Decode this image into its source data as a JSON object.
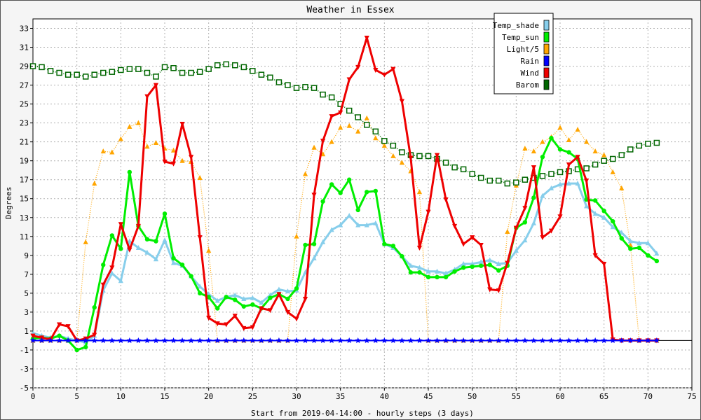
{
  "chart_data": {
    "type": "line",
    "title": "Weather in Essex",
    "xlabel": "Start from 2019-04-14:00 - hourly steps (3 days)",
    "ylabel": "Degrees",
    "xlim": [
      0,
      75
    ],
    "ylim": [
      -5,
      34
    ],
    "xticks": [
      0,
      5,
      10,
      15,
      20,
      25,
      30,
      35,
      40,
      45,
      50,
      55,
      60,
      65,
      70,
      75
    ],
    "yticks": [
      -5,
      -3,
      -1,
      1,
      3,
      5,
      7,
      9,
      11,
      13,
      15,
      17,
      19,
      21,
      23,
      25,
      27,
      29,
      31,
      33
    ],
    "grid": true,
    "legend_position": "top-right",
    "series": [
      {
        "name": "Temp_shade",
        "color": "#87ceeb",
        "marker": "triangle-up",
        "values": [
          0.8,
          0.5,
          0.3,
          0.5,
          0.2,
          0.0,
          -0.2,
          0.5,
          5.3,
          7.1,
          6.3,
          10.5,
          9.8,
          9.3,
          8.6,
          10.6,
          8.2,
          7.9,
          6.8,
          5.7,
          4.9,
          4.2,
          4.6,
          4.8,
          4.4,
          4.5,
          4.0,
          4.8,
          5.4,
          5.2,
          5.3,
          7.2,
          8.7,
          10.4,
          11.7,
          12.2,
          13.2,
          12.2,
          12.2,
          12.4,
          10.2,
          9.8,
          8.9,
          7.9,
          7.7,
          7.3,
          7.3,
          7.1,
          7.5,
          8.1,
          8.1,
          8.3,
          8.5,
          8.1,
          8.2,
          9.5,
          10.6,
          12.4,
          15.3,
          16.1,
          16.5,
          16.6,
          16.6,
          14.2,
          13.4,
          13.0,
          12.0,
          11.4,
          10.5,
          10.3,
          10.3,
          9.2
        ]
      },
      {
        "name": "Temp_sun",
        "color": "#00ee00",
        "marker": "circle",
        "values": [
          0.2,
          0.3,
          0.2,
          0.5,
          0.0,
          -1.0,
          -0.7,
          3.5,
          8.0,
          11.1,
          9.7,
          17.8,
          12.1,
          10.7,
          10.5,
          13.4,
          8.7,
          8.0,
          6.8,
          5.0,
          4.6,
          3.4,
          4.6,
          4.3,
          3.6,
          3.8,
          3.4,
          4.5,
          4.9,
          4.4,
          5.5,
          10.1,
          10.2,
          14.7,
          16.5,
          15.6,
          17.0,
          13.8,
          15.7,
          15.8,
          10.2,
          10.0,
          8.9,
          7.2,
          7.2,
          6.7,
          6.7,
          6.7,
          7.3,
          7.7,
          7.8,
          7.9,
          8.0,
          7.4,
          7.9,
          11.9,
          12.5,
          15.1,
          19.4,
          21.4,
          20.2,
          19.9,
          19.2,
          14.9,
          14.8,
          13.7,
          12.6,
          10.8,
          9.7,
          9.8,
          9.0,
          8.4
        ]
      },
      {
        "name": "Light/5",
        "color": "#ffa500",
        "marker": "triangle-up",
        "values": [
          0,
          0,
          0,
          0,
          0,
          0,
          10.4,
          16.6,
          20.0,
          19.9,
          21.3,
          22.6,
          23.0,
          20.5,
          20.9,
          20.3,
          20.1,
          19.0,
          18.9,
          17.2,
          9.5,
          0,
          0,
          0,
          0,
          0,
          0,
          0,
          0,
          0,
          11.0,
          17.6,
          20.4,
          19.7,
          21.0,
          22.5,
          22.7,
          22.1,
          23.5,
          21.4,
          20.6,
          19.5,
          18.8,
          17.9,
          15.7,
          0,
          0,
          0,
          0,
          0,
          0,
          0,
          0,
          0,
          11.5,
          16.4,
          20.3,
          20.0,
          21.0,
          21.5,
          22.5,
          21.2,
          22.3,
          21.0,
          20.0,
          19.6,
          17.8,
          16.1,
          10.1,
          0,
          0,
          0
        ]
      },
      {
        "name": "Rain",
        "color": "#0000ff",
        "marker": "star",
        "values": [
          0,
          0,
          0,
          0,
          0,
          0,
          0,
          0,
          0,
          0,
          0,
          0,
          0,
          0,
          0,
          0,
          0,
          0,
          0,
          0,
          0,
          0,
          0,
          0,
          0,
          0,
          0,
          0,
          0,
          0,
          0,
          0,
          0,
          0,
          0,
          0,
          0,
          0,
          0,
          0,
          0,
          0,
          0,
          0,
          0,
          0,
          0,
          0,
          0,
          0,
          0,
          0,
          0,
          0,
          0,
          0,
          0,
          0,
          0,
          0,
          0,
          0,
          0,
          0,
          0,
          0,
          0,
          0,
          0,
          0,
          0,
          0
        ]
      },
      {
        "name": "Wind",
        "color": "#ee0000",
        "marker": "triangle-down",
        "values": [
          0.5,
          0.3,
          0.1,
          1.7,
          1.5,
          0.0,
          0.2,
          0.6,
          5.9,
          7.7,
          12.3,
          9.6,
          12.1,
          25.8,
          27.0,
          18.9,
          18.7,
          22.9,
          19.4,
          10.9,
          2.4,
          1.8,
          1.7,
          2.6,
          1.3,
          1.4,
          3.4,
          3.2,
          4.9,
          3.0,
          2.3,
          4.4,
          15.4,
          21.1,
          23.7,
          24.1,
          27.6,
          28.9,
          32.0,
          28.6,
          28.1,
          28.7,
          25.3,
          19.3,
          9.8,
          13.6,
          19.6,
          14.9,
          12.1,
          10.2,
          10.9,
          10.1,
          5.4,
          5.3,
          8.2,
          11.9,
          14.0,
          18.3,
          10.9,
          11.6,
          13.1,
          18.6,
          19.4,
          16.9,
          9.0,
          8.1,
          0.1,
          0.0,
          0.0,
          0.0,
          0.0,
          0.0
        ]
      },
      {
        "name": "Barom",
        "color": "#006600",
        "marker": "square",
        "values": [
          29.0,
          28.9,
          28.5,
          28.3,
          28.1,
          28.1,
          27.9,
          28.1,
          28.3,
          28.4,
          28.6,
          28.7,
          28.7,
          28.3,
          27.9,
          28.9,
          28.8,
          28.3,
          28.3,
          28.4,
          28.7,
          29.1,
          29.2,
          29.1,
          28.9,
          28.5,
          28.1,
          27.8,
          27.3,
          27.0,
          26.7,
          26.8,
          26.7,
          26.0,
          25.7,
          25.0,
          24.3,
          23.6,
          22.8,
          22.1,
          21.1,
          20.6,
          19.9,
          19.6,
          19.5,
          19.5,
          19.2,
          18.8,
          18.3,
          18.1,
          17.6,
          17.2,
          16.9,
          16.9,
          16.6,
          16.7,
          17.0,
          17.2,
          17.4,
          17.6,
          17.8,
          17.9,
          18.1,
          18.2,
          18.6,
          19.0,
          19.2,
          19.6,
          20.2,
          20.6,
          20.8,
          20.9
        ]
      }
    ]
  }
}
